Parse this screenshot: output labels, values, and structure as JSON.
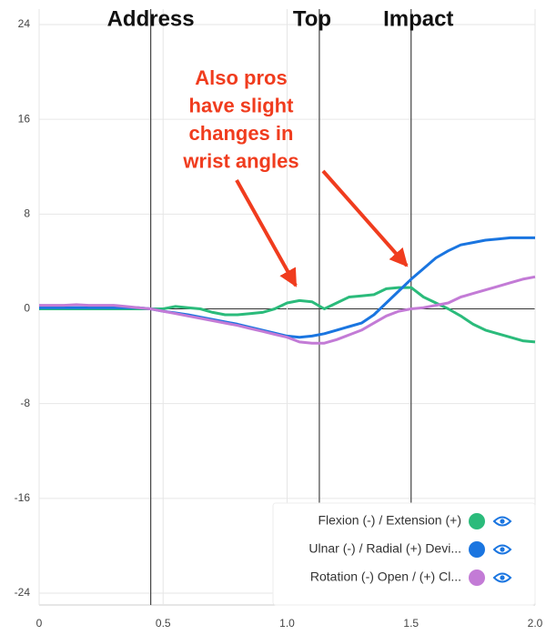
{
  "chart_data": {
    "type": "line",
    "x": [
      0,
      0.05,
      0.1,
      0.15,
      0.2,
      0.25,
      0.3,
      0.35,
      0.4,
      0.45,
      0.5,
      0.55,
      0.6,
      0.65,
      0.7,
      0.75,
      0.8,
      0.85,
      0.9,
      0.95,
      1.0,
      1.05,
      1.1,
      1.15,
      1.2,
      1.25,
      1.3,
      1.35,
      1.4,
      1.45,
      1.5,
      1.55,
      1.6,
      1.65,
      1.7,
      1.75,
      1.8,
      1.85,
      1.9,
      1.95,
      2.0
    ],
    "series": [
      {
        "name": "Flexion (-) / Extension (+)",
        "color": "#2bbb7b",
        "values": [
          0,
          0,
          0,
          0,
          0,
          0,
          0,
          0,
          0,
          0,
          0,
          0.2,
          0.1,
          0,
          -0.3,
          -0.5,
          -0.5,
          -0.4,
          -0.3,
          0,
          0.5,
          0.7,
          0.6,
          0,
          0.5,
          1.0,
          1.1,
          1.2,
          1.7,
          1.8,
          1.8,
          1.0,
          0.5,
          0,
          -0.6,
          -1.3,
          -1.8,
          -2.1,
          -2.4,
          -2.7,
          -2.8
        ]
      },
      {
        "name": "Ulnar (-) / Radial (+) Devi...",
        "color": "#1a75e0",
        "values": [
          0.1,
          0.1,
          0.1,
          0.1,
          0.1,
          0.1,
          0.1,
          0.1,
          0.1,
          0,
          -0.2,
          -0.35,
          -0.5,
          -0.7,
          -0.9,
          -1.1,
          -1.3,
          -1.55,
          -1.8,
          -2.05,
          -2.3,
          -2.4,
          -2.3,
          -2.1,
          -1.8,
          -1.5,
          -1.2,
          -0.5,
          0.5,
          1.5,
          2.5,
          3.4,
          4.3,
          4.9,
          5.4,
          5.6,
          5.8,
          5.9,
          6.0,
          6.0,
          6.0
        ]
      },
      {
        "name": "Rotation (-) Open / (+) Cl...",
        "color": "#c37bd6",
        "values": [
          0.3,
          0.3,
          0.3,
          0.35,
          0.3,
          0.3,
          0.3,
          0.2,
          0.1,
          0,
          -0.2,
          -0.4,
          -0.6,
          -0.8,
          -1.0,
          -1.2,
          -1.4,
          -1.65,
          -1.9,
          -2.15,
          -2.4,
          -2.8,
          -2.9,
          -2.9,
          -2.6,
          -2.2,
          -1.8,
          -1.2,
          -0.6,
          -0.2,
          0,
          0.1,
          0.3,
          0.5,
          1.0,
          1.3,
          1.6,
          1.9,
          2.2,
          2.5,
          2.7
        ]
      }
    ],
    "xlim": [
      0,
      2.0
    ],
    "xticks": [
      0,
      0.5,
      {
        "value": 1.0,
        "label": "1.0"
      },
      1.5,
      {
        "value": 2.0,
        "label": "2.0"
      }
    ],
    "ylim": [
      -25,
      24
    ],
    "yticks": [
      24,
      16,
      8,
      0,
      -8,
      -16,
      -24
    ],
    "grid": true,
    "legend": "lower right",
    "events": [
      {
        "label": "Address",
        "x": 0.45
      },
      {
        "label": "Top",
        "x": 1.13
      },
      {
        "label": "Impact",
        "x": 1.5
      }
    ],
    "annotation": [
      "Also pros",
      "have slight",
      "changes in",
      "wrist angles"
    ]
  }
}
